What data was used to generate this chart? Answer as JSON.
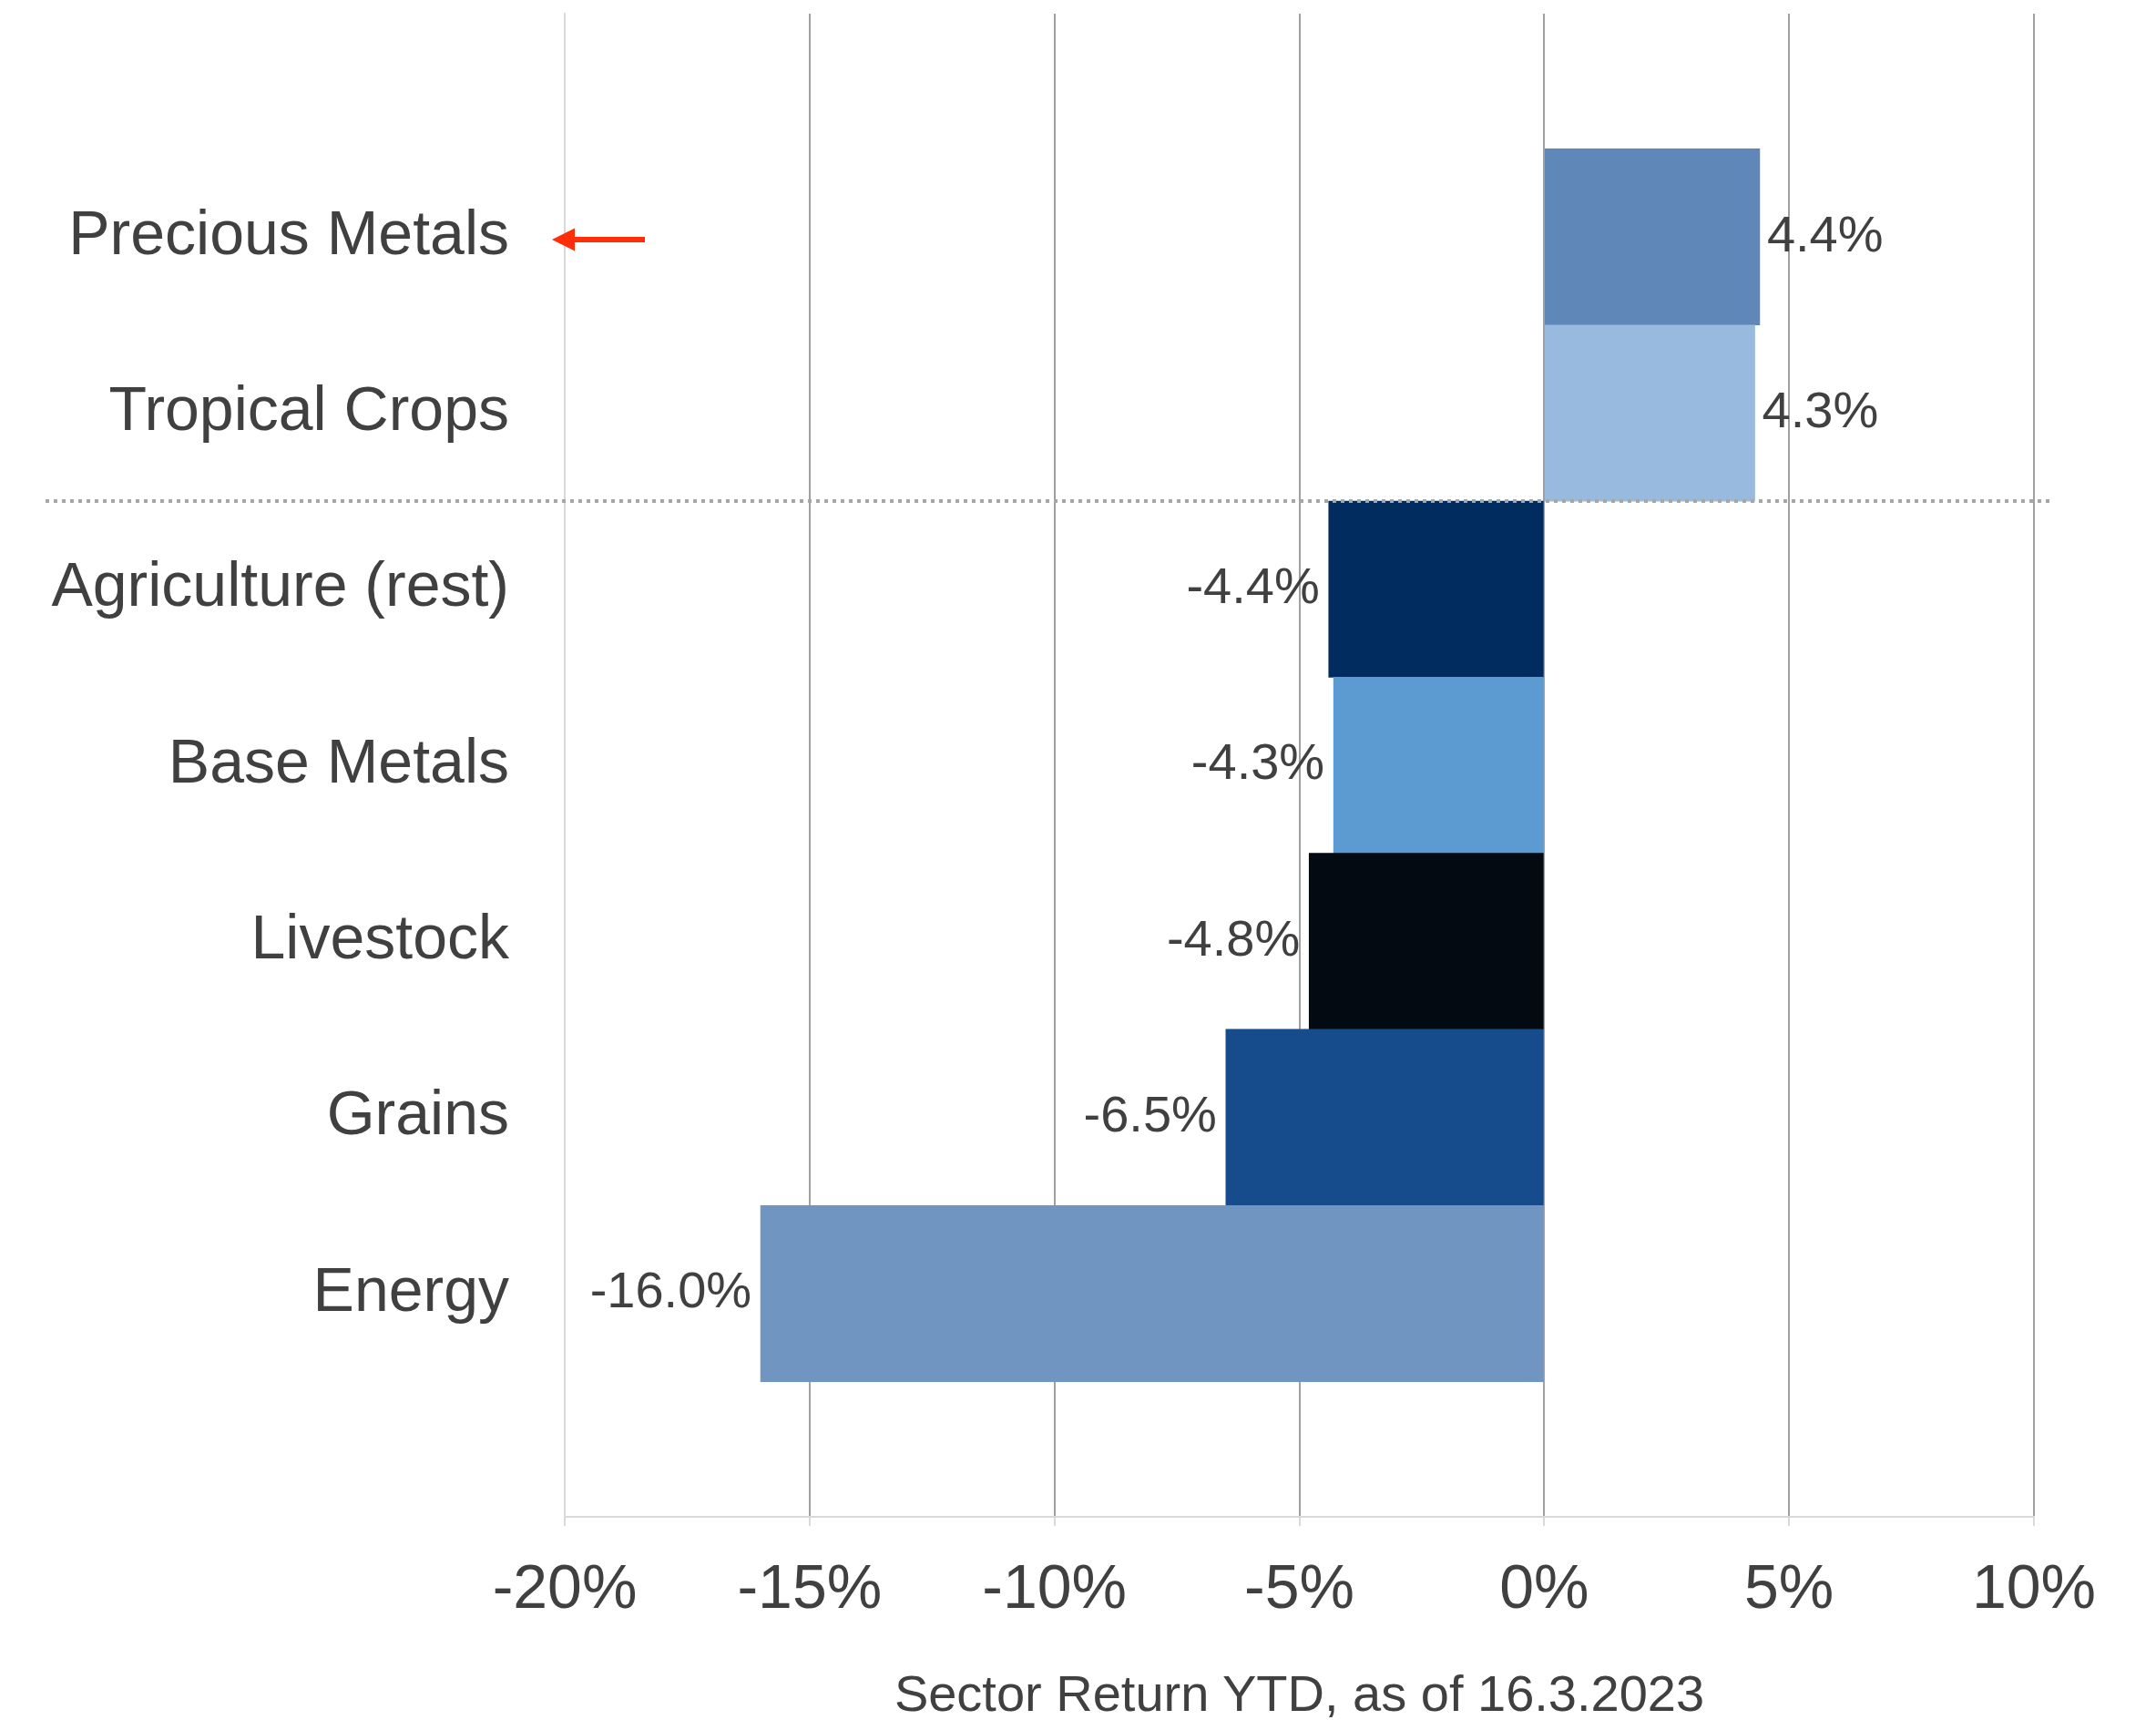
{
  "chart_data": {
    "type": "bar",
    "orientation": "horizontal",
    "xlabel": "Sector Return YTD, as of 16.3.2023",
    "categories": [
      "Precious Metals",
      "Tropical Crops",
      "Agriculture (rest)",
      "Base Metals",
      "Livestock",
      "Grains",
      "Energy"
    ],
    "values": [
      4.4,
      4.3,
      -4.4,
      -4.3,
      -4.8,
      -6.5,
      -16.0
    ],
    "colors": [
      "#5f87b8",
      "#98bade",
      "#002c60",
      "#5b9bd2",
      "#030a12",
      "#164b8c",
      "#7195c1"
    ],
    "value_labels": [
      "4.4%",
      "4.3%",
      "-4.4%",
      "-4.3%",
      "-4.8%",
      "-6.5%",
      "-16.0%"
    ],
    "xlim": [
      -20,
      10
    ],
    "xticks": [
      {
        "value": -20,
        "label": "-20%"
      },
      {
        "value": -15,
        "label": "-15%"
      },
      {
        "value": -10,
        "label": "-10%"
      },
      {
        "value": -5,
        "label": "-5%"
      },
      {
        "value": 0,
        "label": "0%"
      },
      {
        "value": 5,
        "label": "5%"
      },
      {
        "value": 10,
        "label": "10%"
      }
    ],
    "grid": "x"
  }
}
